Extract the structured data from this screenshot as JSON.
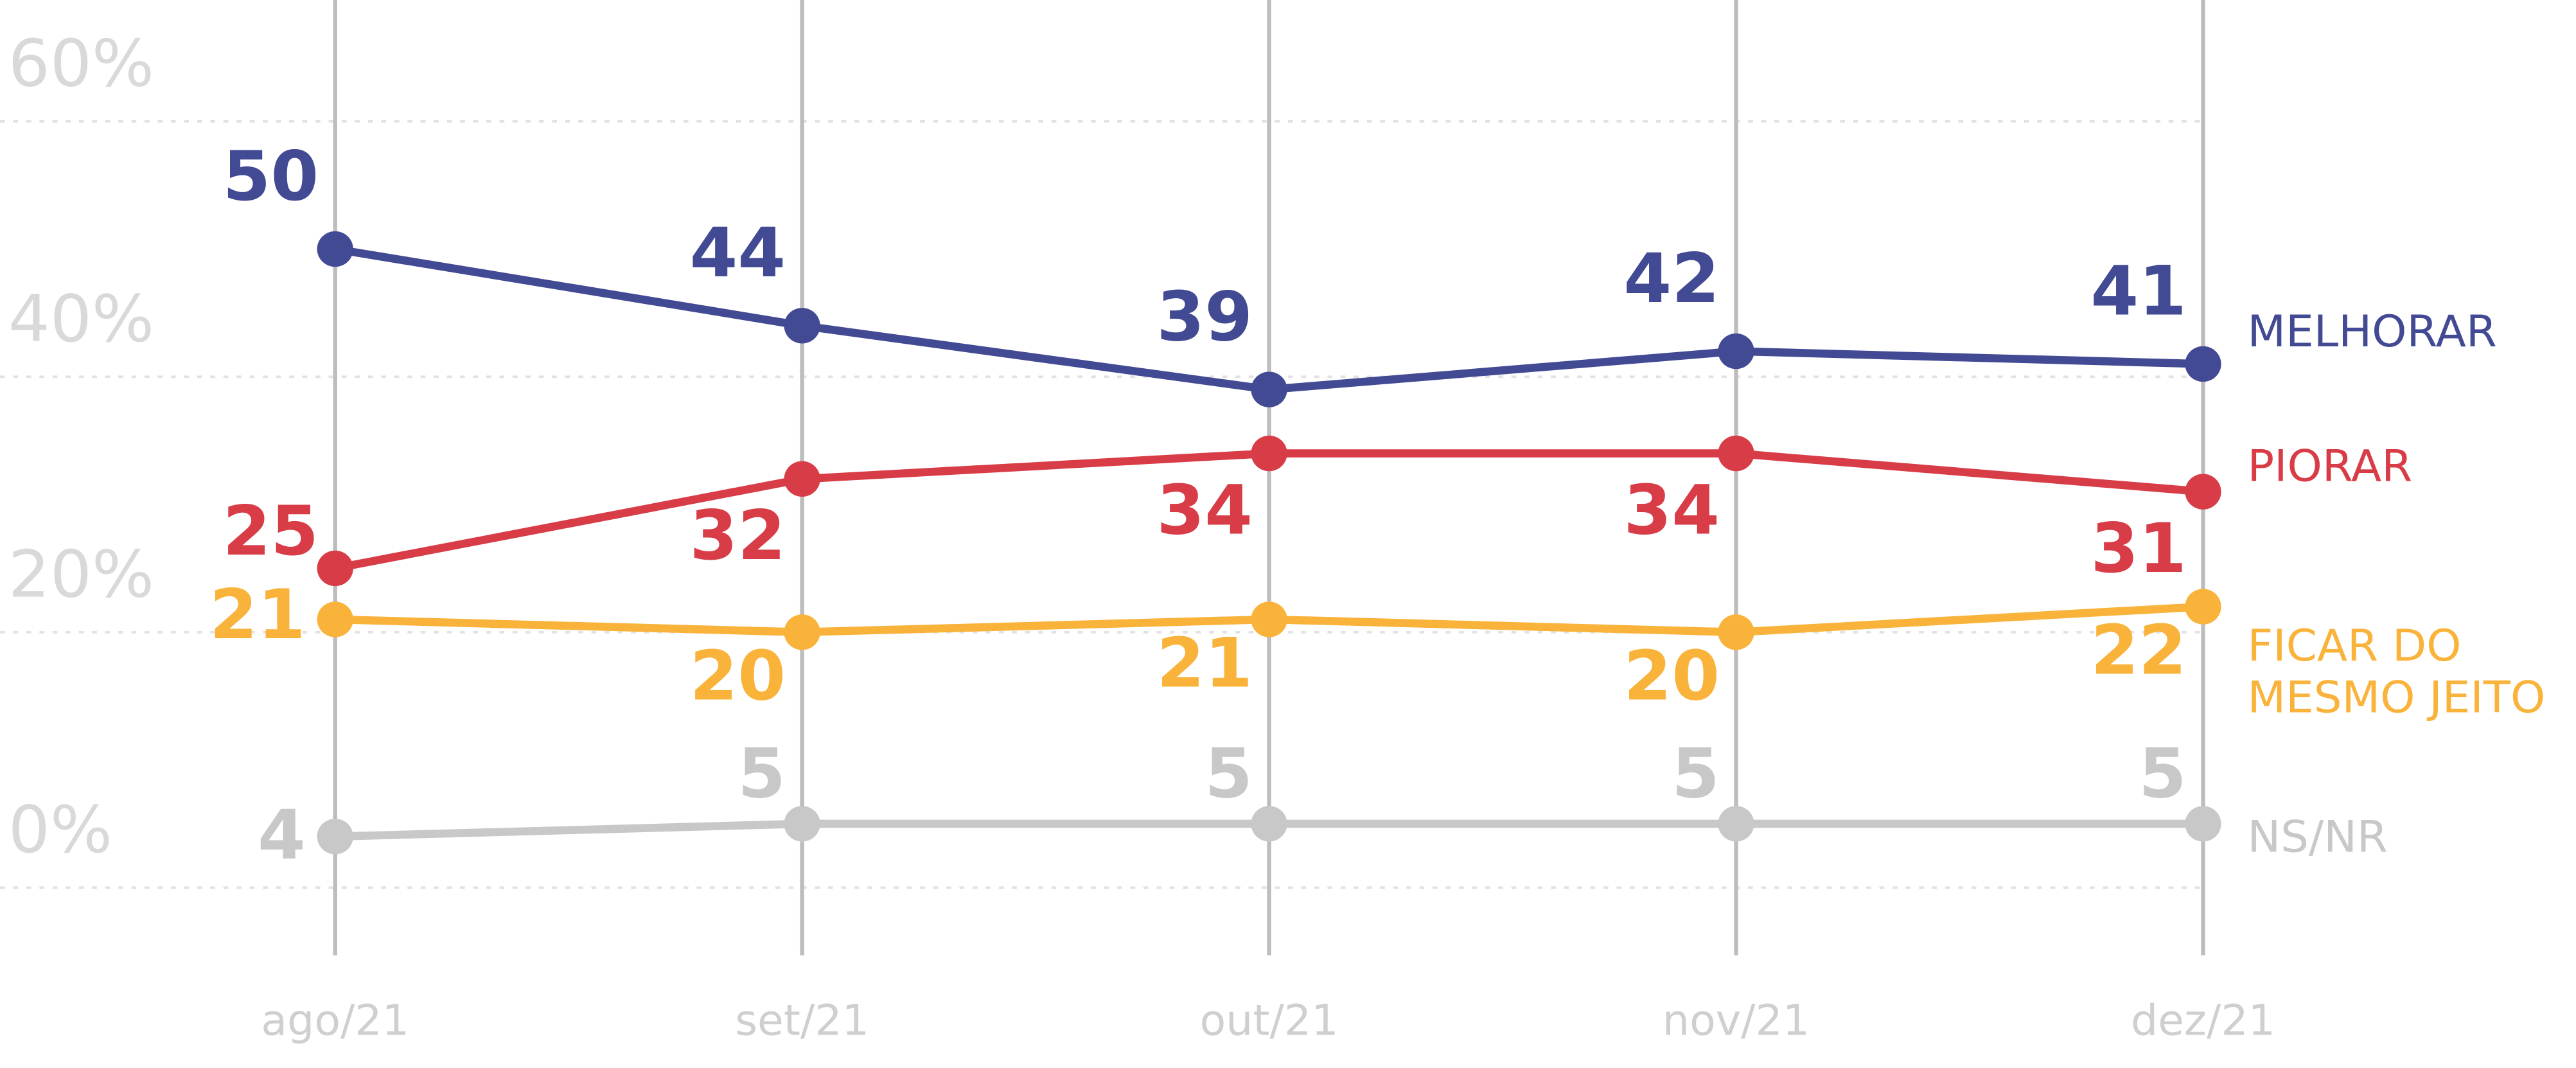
{
  "chart_data": {
    "type": "line",
    "categories": [
      "ago/21",
      "set/21",
      "out/21",
      "nov/21",
      "dez/21"
    ],
    "series": [
      {
        "name": "MELHORAR",
        "color": "#434a94",
        "values": [
          50,
          44,
          39,
          42,
          41
        ]
      },
      {
        "name": "PIORAR",
        "color": "#d83c47",
        "values": [
          25,
          32,
          34,
          34,
          31
        ]
      },
      {
        "name": "FICAR DO MESMO JEITO",
        "color": "#f9b33a",
        "values": [
          21,
          20,
          21,
          20,
          22
        ]
      },
      {
        "name": "NS/NR",
        "color": "#c8c8c8",
        "values": [
          4,
          5,
          5,
          5,
          5
        ]
      }
    ],
    "ylim": [
      -5.3,
      69.5
    ],
    "yticks": [
      {
        "value": 0,
        "label": "0%"
      },
      {
        "value": 20,
        "label": "20%"
      },
      {
        "value": 40,
        "label": "40%"
      },
      {
        "value": 60,
        "label": "60%"
      }
    ],
    "grid": true
  }
}
